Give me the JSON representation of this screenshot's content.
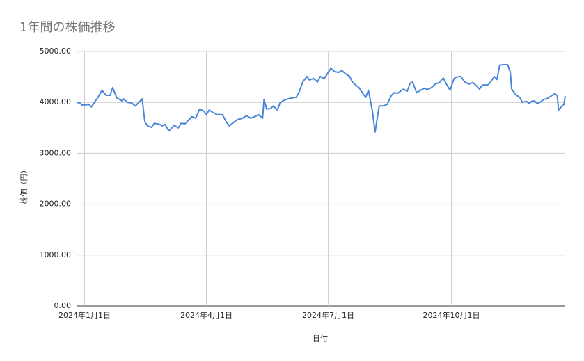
{
  "chart_data": {
    "type": "line",
    "title": "1年間の株価推移",
    "x_label": "日付",
    "y_label": "株価（円）",
    "grid": true,
    "x": [
      "2023-12-26",
      "2023-12-28",
      "2023-12-30",
      "2024-01-01",
      "2024-01-04",
      "2024-01-06",
      "2024-01-08",
      "2024-01-11",
      "2024-01-14",
      "2024-01-17",
      "2024-01-20",
      "2024-01-22",
      "2024-01-25",
      "2024-01-29",
      "2024-01-30",
      "2024-02-02",
      "2024-02-05",
      "2024-02-08",
      "2024-02-13",
      "2024-02-15",
      "2024-02-17",
      "2024-02-20",
      "2024-02-22",
      "2024-02-26",
      "2024-02-28",
      "2024-03-01",
      "2024-03-04",
      "2024-03-08",
      "2024-03-11",
      "2024-03-13",
      "2024-03-16",
      "2024-03-19",
      "2024-03-21",
      "2024-03-24",
      "2024-03-27",
      "2024-03-30",
      "2024-04-01",
      "2024-04-03",
      "2024-04-06",
      "2024-04-09",
      "2024-04-13",
      "2024-04-16",
      "2024-04-18",
      "2024-04-22",
      "2024-04-24",
      "2024-04-28",
      "2024-05-01",
      "2024-05-04",
      "2024-05-07",
      "2024-05-10",
      "2024-05-13",
      "2024-05-14",
      "2024-05-16",
      "2024-05-19",
      "2024-05-21",
      "2024-05-24",
      "2024-05-26",
      "2024-05-28",
      "2024-06-01",
      "2024-06-04",
      "2024-06-07",
      "2024-06-09",
      "2024-06-12",
      "2024-06-15",
      "2024-06-17",
      "2024-06-20",
      "2024-06-23",
      "2024-06-25",
      "2024-06-28",
      "2024-06-30",
      "2024-07-03",
      "2024-07-06",
      "2024-07-09",
      "2024-07-11",
      "2024-07-14",
      "2024-07-17",
      "2024-07-19",
      "2024-07-22",
      "2024-07-24",
      "2024-07-27",
      "2024-07-29",
      "2024-07-31",
      "2024-08-03",
      "2024-08-05",
      "2024-08-08",
      "2024-08-11",
      "2024-08-14",
      "2024-08-17",
      "2024-08-19",
      "2024-08-22",
      "2024-08-26",
      "2024-08-29",
      "2024-08-31",
      "2024-09-02",
      "2024-09-05",
      "2024-09-08",
      "2024-09-11",
      "2024-09-13",
      "2024-09-16",
      "2024-09-19",
      "2024-09-22",
      "2024-09-25",
      "2024-09-27",
      "2024-09-30",
      "2024-10-03",
      "2024-10-05",
      "2024-10-08",
      "2024-10-11",
      "2024-10-14",
      "2024-10-17",
      "2024-10-20",
      "2024-10-22",
      "2024-10-24",
      "2024-10-28",
      "2024-10-30",
      "2024-11-02",
      "2024-11-04",
      "2024-11-06",
      "2024-11-09",
      "2024-11-12",
      "2024-11-14",
      "2024-11-15",
      "2024-11-18",
      "2024-11-21",
      "2024-11-23",
      "2024-11-26",
      "2024-11-28",
      "2024-11-30",
      "2024-12-02",
      "2024-12-04",
      "2024-12-06",
      "2024-12-09",
      "2024-12-11",
      "2024-12-13",
      "2024-12-17",
      "2024-12-19",
      "2024-12-20",
      "2024-12-22",
      "2024-12-24",
      "2024-12-25"
    ],
    "series": [
      {
        "name": "株価",
        "color": "#4a86d8",
        "values": [
          3990,
          4000,
          3950,
          3950,
          3960,
          3910,
          3990,
          4100,
          4240,
          4140,
          4140,
          4290,
          4090,
          4030,
          4070,
          4000,
          3990,
          3930,
          4070,
          3620,
          3540,
          3510,
          3590,
          3570,
          3540,
          3570,
          3440,
          3550,
          3500,
          3590,
          3580,
          3660,
          3720,
          3690,
          3870,
          3830,
          3760,
          3850,
          3800,
          3760,
          3760,
          3610,
          3540,
          3620,
          3660,
          3690,
          3740,
          3690,
          3720,
          3760,
          3690,
          4060,
          3870,
          3880,
          3930,
          3850,
          3990,
          4030,
          4070,
          4090,
          4100,
          4190,
          4400,
          4510,
          4440,
          4470,
          4400,
          4510,
          4470,
          4550,
          4670,
          4600,
          4590,
          4630,
          4560,
          4510,
          4400,
          4330,
          4290,
          4170,
          4100,
          4240,
          3830,
          3420,
          3930,
          3930,
          3960,
          4130,
          4190,
          4180,
          4260,
          4220,
          4370,
          4400,
          4190,
          4240,
          4280,
          4250,
          4290,
          4360,
          4390,
          4480,
          4370,
          4240,
          4470,
          4500,
          4510,
          4400,
          4360,
          4390,
          4320,
          4260,
          4340,
          4340,
          4390,
          4510,
          4450,
          4730,
          4740,
          4740,
          4590,
          4260,
          4150,
          4100,
          4000,
          4020,
          3980,
          4020,
          4030,
          3980,
          4000,
          4060,
          4070,
          4100,
          4170,
          4140,
          3850,
          3910,
          3960,
          4130
        ]
      }
    ],
    "xlim": [
      "2023-12-26",
      "2024-12-25"
    ],
    "xticks": [
      {
        "value": "2024-01-01",
        "label": "2024年1月1日"
      },
      {
        "value": "2024-04-01",
        "label": "2024年4月1日"
      },
      {
        "value": "2024-07-01",
        "label": "2024年7月1日"
      },
      {
        "value": "2024-10-01",
        "label": "2024年10月1日"
      }
    ],
    "ylim": [
      0,
      5000
    ],
    "yticks": [
      {
        "value": 0,
        "label": "0.00"
      },
      {
        "value": 1000,
        "label": "1000.00"
      },
      {
        "value": 2000,
        "label": "2000.00"
      },
      {
        "value": 3000,
        "label": "3000.00"
      },
      {
        "value": 4000,
        "label": "4000.00"
      },
      {
        "value": 5000,
        "label": "5000.00"
      }
    ]
  }
}
